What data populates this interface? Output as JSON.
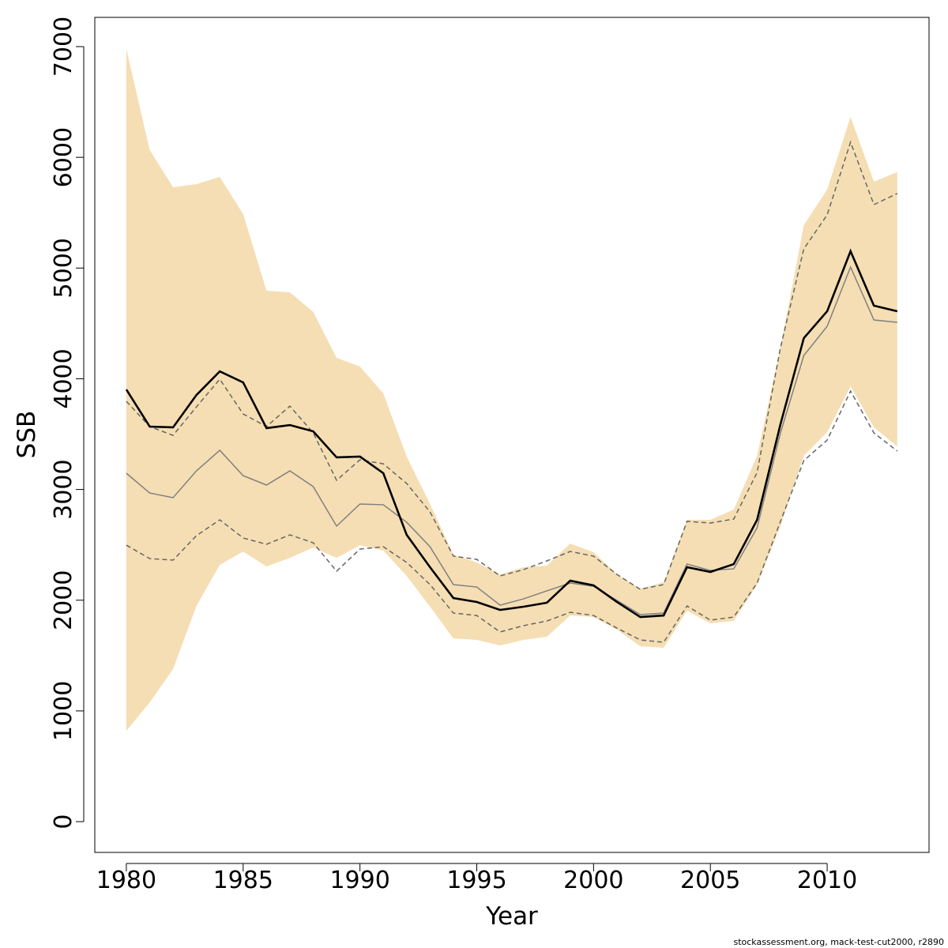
{
  "chart_data": {
    "type": "line",
    "x_label": "Year",
    "y_label": "SSB",
    "footer": "stockassessment.org, mack-test-cut2000, r2890",
    "x": [
      1980,
      1981,
      1982,
      1983,
      1984,
      1985,
      1986,
      1987,
      1988,
      1989,
      1990,
      1991,
      1992,
      1993,
      1994,
      1995,
      1996,
      1997,
      1998,
      1999,
      2000,
      2001,
      2002,
      2003,
      2004,
      2005,
      2006,
      2007,
      2008,
      2009,
      2010,
      2011,
      2012,
      2013
    ],
    "xlim": [
      1978.65,
      2014.36
    ],
    "xticks": [
      1980,
      1985,
      1990,
      1995,
      2000,
      2005,
      2010
    ],
    "ylim": [
      -278,
      7264
    ],
    "yticks": [
      0,
      1000,
      2000,
      3000,
      4000,
      5000,
      6000,
      7000
    ],
    "band": {
      "color": "#f5deb3",
      "upper": [
        6979,
        6065,
        5730,
        5758,
        5823,
        5487,
        4795,
        4781,
        4603,
        4189,
        4110,
        3868,
        3297,
        2869,
        2412,
        2341,
        2233,
        2298,
        2312,
        2512,
        2433,
        2233,
        2105,
        2162,
        2726,
        2726,
        2819,
        3304,
        4281,
        5387,
        5709,
        6365,
        5780,
        5866
      ],
      "lower": [
        821,
        1077,
        1377,
        1948,
        2319,
        2440,
        2305,
        2383,
        2476,
        2383,
        2497,
        2448,
        2219,
        1941,
        1655,
        1641,
        1591,
        1641,
        1670,
        1862,
        1848,
        1734,
        1584,
        1570,
        1905,
        1791,
        1813,
        2141,
        2669,
        3304,
        3518,
        3932,
        3561,
        3389
      ]
    },
    "series": [
      {
        "color": "#666666",
        "style": "dashed",
        "values": [
          3796,
          3568,
          3489,
          3746,
          3996,
          3682,
          3568,
          3753,
          3511,
          3083,
          3268,
          3232,
          3054,
          2797,
          2398,
          2369,
          2219,
          2276,
          2355,
          2440,
          2398,
          2233,
          2098,
          2141,
          2712,
          2697,
          2733,
          3154,
          4281,
          5173,
          5480,
          6137,
          5573,
          5673
        ]
      },
      {
        "color": "#666666",
        "style": "dashed",
        "values": [
          2497,
          2376,
          2362,
          2583,
          2726,
          2562,
          2505,
          2590,
          2519,
          2262,
          2462,
          2483,
          2341,
          2141,
          1884,
          1862,
          1713,
          1770,
          1812,
          1891,
          1862,
          1748,
          1641,
          1620,
          1948,
          1820,
          1848,
          2155,
          2712,
          3261,
          3446,
          3889,
          3511,
          3347
        ]
      },
      {
        "color": "#808080",
        "style": "thin",
        "values": [
          3147,
          2968,
          2926,
          3168,
          3354,
          3125,
          3040,
          3168,
          3026,
          2669,
          2869,
          2862,
          2704,
          2483,
          2141,
          2119,
          1955,
          2012,
          2084,
          2155,
          2126,
          1998,
          1870,
          1884,
          2326,
          2269,
          2283,
          2654,
          3511,
          4210,
          4474,
          5009,
          4531,
          4510
        ]
      },
      {
        "color": "#000000",
        "style": "thick",
        "values": [
          3903,
          3568,
          3561,
          3853,
          4067,
          3967,
          3554,
          3582,
          3525,
          3290,
          3297,
          3147,
          2590,
          2298,
          2019,
          1984,
          1912,
          1941,
          1977,
          2176,
          2134,
          1984,
          1848,
          1862,
          2298,
          2255,
          2326,
          2726,
          3589,
          4367,
          4610,
          5152,
          4660,
          4610
        ]
      }
    ]
  }
}
